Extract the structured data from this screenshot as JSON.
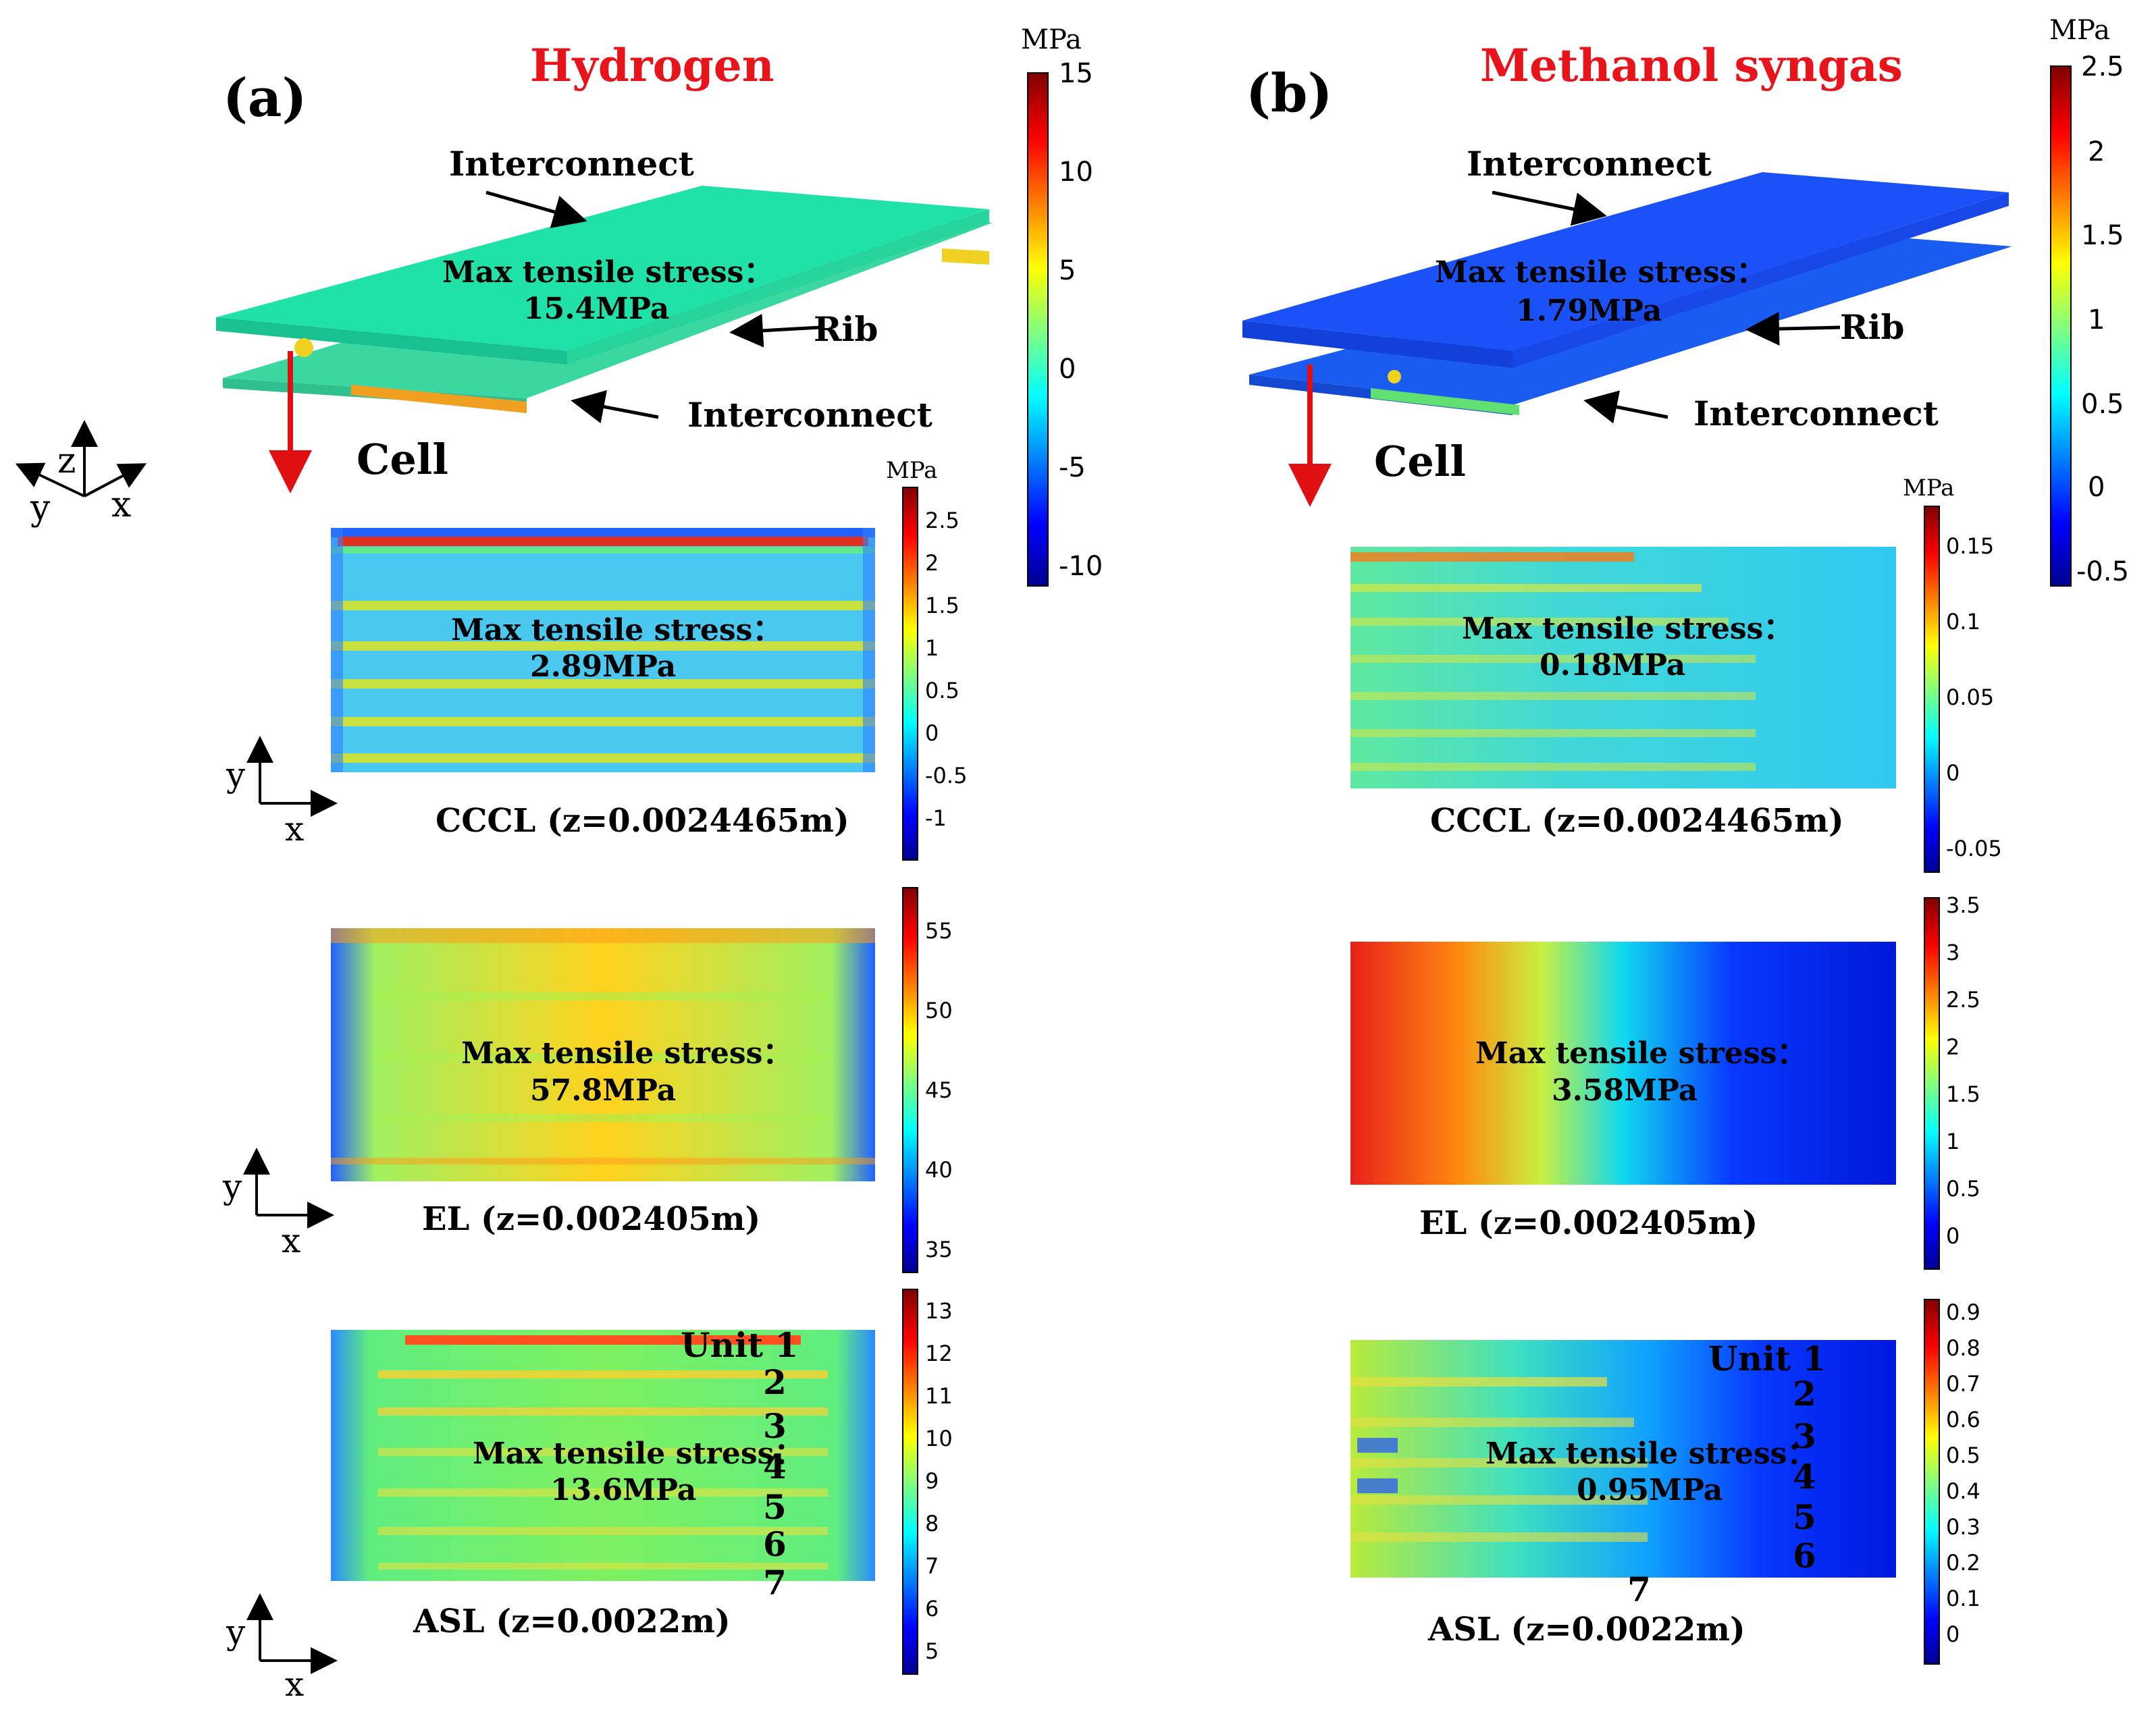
{
  "panel_a": {
    "label": "(a)",
    "title": "Hydrogen",
    "assembly": {
      "interconnect_top": "Interconnect",
      "interconnect_bottom": "Interconnect",
      "rib": "Rib",
      "cell": "Cell",
      "max_label": "Max tensile stress：",
      "max_value": "15.4MPa",
      "colorbar": {
        "unit": "MPa",
        "ticks": [
          "15",
          "10",
          "5",
          "0",
          "-5",
          "-10"
        ]
      }
    },
    "cccl": {
      "caption": "CCCL (z=0.0024465m)",
      "max_label": "Max tensile stress：",
      "max_value": "2.89MPa",
      "colorbar": {
        "unit": "MPa",
        "ticks": [
          "2.5",
          "2",
          "1.5",
          "1",
          "0.5",
          "0",
          "-0.5",
          "-1"
        ]
      }
    },
    "el": {
      "caption": "EL (z=0.002405m)",
      "max_label": "Max tensile stress：",
      "max_value": "57.8MPa",
      "colorbar": {
        "ticks": [
          "55",
          "50",
          "45",
          "40",
          "35"
        ]
      }
    },
    "asl": {
      "caption": "ASL (z=0.0022m)",
      "max_label": "Max tensile stress：",
      "max_value": "13.6MPa",
      "unit_label": "Unit 1",
      "units": [
        "2",
        "3",
        "4",
        "5",
        "6",
        "7"
      ],
      "colorbar": {
        "ticks": [
          "13",
          "12",
          "11",
          "10",
          "9",
          "8",
          "7",
          "6",
          "5"
        ]
      }
    }
  },
  "panel_b": {
    "label": "(b)",
    "title": "Methanol syngas",
    "assembly": {
      "interconnect_top": "Interconnect",
      "interconnect_bottom": "Interconnect",
      "rib": "Rib",
      "cell": "Cell",
      "max_label": "Max tensile stress：",
      "max_value": "1.79MPa",
      "colorbar": {
        "unit": "MPa",
        "ticks": [
          "2.5",
          "2",
          "1.5",
          "1",
          "0.5",
          "0",
          "-0.5"
        ]
      }
    },
    "cccl": {
      "caption": "CCCL (z=0.0024465m)",
      "max_label": "Max tensile stress：",
      "max_value": "0.18MPa",
      "colorbar": {
        "unit": "MPa",
        "ticks": [
          "0.15",
          "0.1",
          "0.05",
          "0",
          "-0.05"
        ]
      }
    },
    "el": {
      "caption": "EL (z=0.002405m)",
      "max_label": "Max tensile stress：",
      "max_value": "3.58MPa",
      "colorbar": {
        "ticks": [
          "3.5",
          "3",
          "2.5",
          "2",
          "1.5",
          "1",
          "0.5",
          "0"
        ]
      }
    },
    "asl": {
      "caption": "ASL (z=0.0022m)",
      "max_label": "Max tensile stress：",
      "max_value": "0.95MPa",
      "unit_label": "Unit 1",
      "units": [
        "2",
        "3",
        "4",
        "5",
        "6",
        "7"
      ],
      "colorbar": {
        "ticks": [
          "0.9",
          "0.8",
          "0.7",
          "0.6",
          "0.5",
          "0.4",
          "0.3",
          "0.2",
          "0.1",
          "0"
        ]
      }
    }
  },
  "axes": {
    "x": "x",
    "y": "y",
    "z": "z"
  },
  "colors": {
    "title": "#e8141c",
    "arrow_red": "#e01010",
    "text": "#000000"
  }
}
